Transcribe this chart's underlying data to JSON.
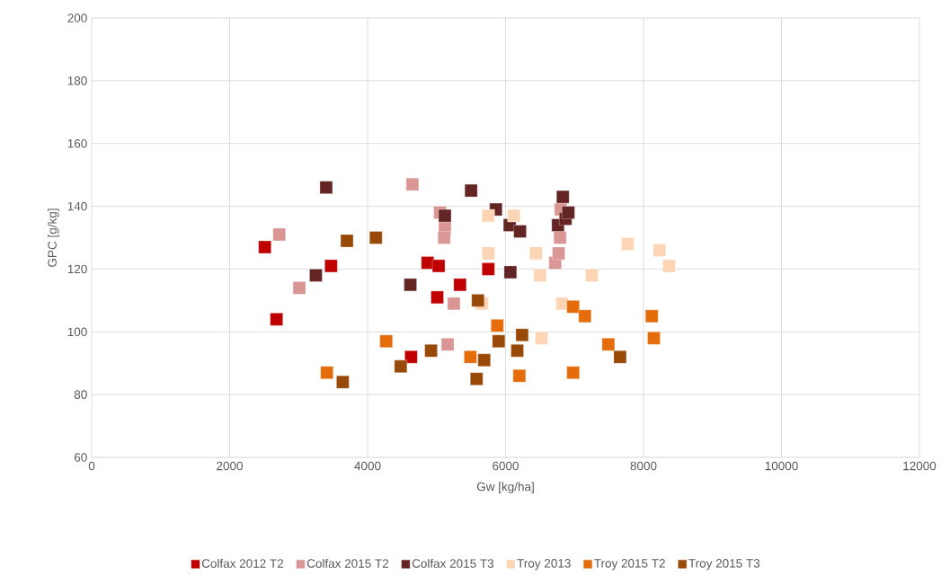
{
  "chart_data": {
    "type": "scatter",
    "xlabel": "Gw [kg/ha]",
    "ylabel": "GPC [g/kg]",
    "xlim": [
      0,
      12000
    ],
    "ylim": [
      60,
      200
    ],
    "xticks": [
      0,
      2000,
      4000,
      6000,
      8000,
      10000,
      12000
    ],
    "yticks": [
      60,
      80,
      100,
      120,
      140,
      160,
      180,
      200
    ],
    "grid": true,
    "legend": "bottom",
    "marker": "square",
    "series": [
      {
        "name": "Colfax 2012 T2",
        "color": "#c00000",
        "x": [
          2510,
          2680,
          3470,
          4630,
          4870,
          5030,
          5010,
          5340,
          5750
        ],
        "values": [
          127,
          104,
          121,
          92,
          122,
          121,
          111,
          115,
          120
        ]
      },
      {
        "name": "Colfax 2015 T2",
        "color": "#da9694",
        "x": [
          2720,
          3010,
          4650,
          5050,
          5120,
          5110,
          5250,
          5160,
          6720,
          6770,
          6790,
          6800
        ],
        "values": [
          131,
          114,
          147,
          138,
          133,
          130,
          109,
          96,
          122,
          125,
          130,
          139
        ]
      },
      {
        "name": "Colfax 2015 T3",
        "color": "#632523",
        "x": [
          3250,
          3400,
          4620,
          5500,
          5120,
          5860,
          6060,
          6210,
          6070,
          6760,
          6830,
          6870,
          6910
        ],
        "values": [
          118,
          146,
          115,
          145,
          137,
          139,
          134,
          132,
          119,
          134,
          143,
          136,
          138
        ]
      },
      {
        "name": "Troy 2013",
        "color": "#fcd5b5",
        "x": [
          5750,
          6120,
          5750,
          5660,
          6440,
          6500,
          6520,
          6820,
          7250,
          7770,
          8230,
          8370
        ],
        "values": [
          137,
          137,
          125,
          109,
          125,
          118,
          98,
          109,
          118,
          128,
          126,
          121
        ]
      },
      {
        "name": "Troy 2015 T2",
        "color": "#e46c0a",
        "x": [
          3410,
          4270,
          5490,
          5880,
          6200,
          6980,
          7150,
          6980,
          7490,
          8120,
          8150
        ],
        "values": [
          87,
          97,
          92,
          102,
          86,
          108,
          105,
          87,
          96,
          105,
          98
        ]
      },
      {
        "name": "Troy 2015 T3",
        "color": "#984807",
        "x": [
          3640,
          3700,
          4120,
          4480,
          4920,
          5600,
          5690,
          5900,
          6240,
          6170,
          5580,
          7660
        ],
        "values": [
          84,
          129,
          130,
          89,
          94,
          110,
          91,
          97,
          99,
          94,
          85,
          92
        ]
      }
    ]
  }
}
